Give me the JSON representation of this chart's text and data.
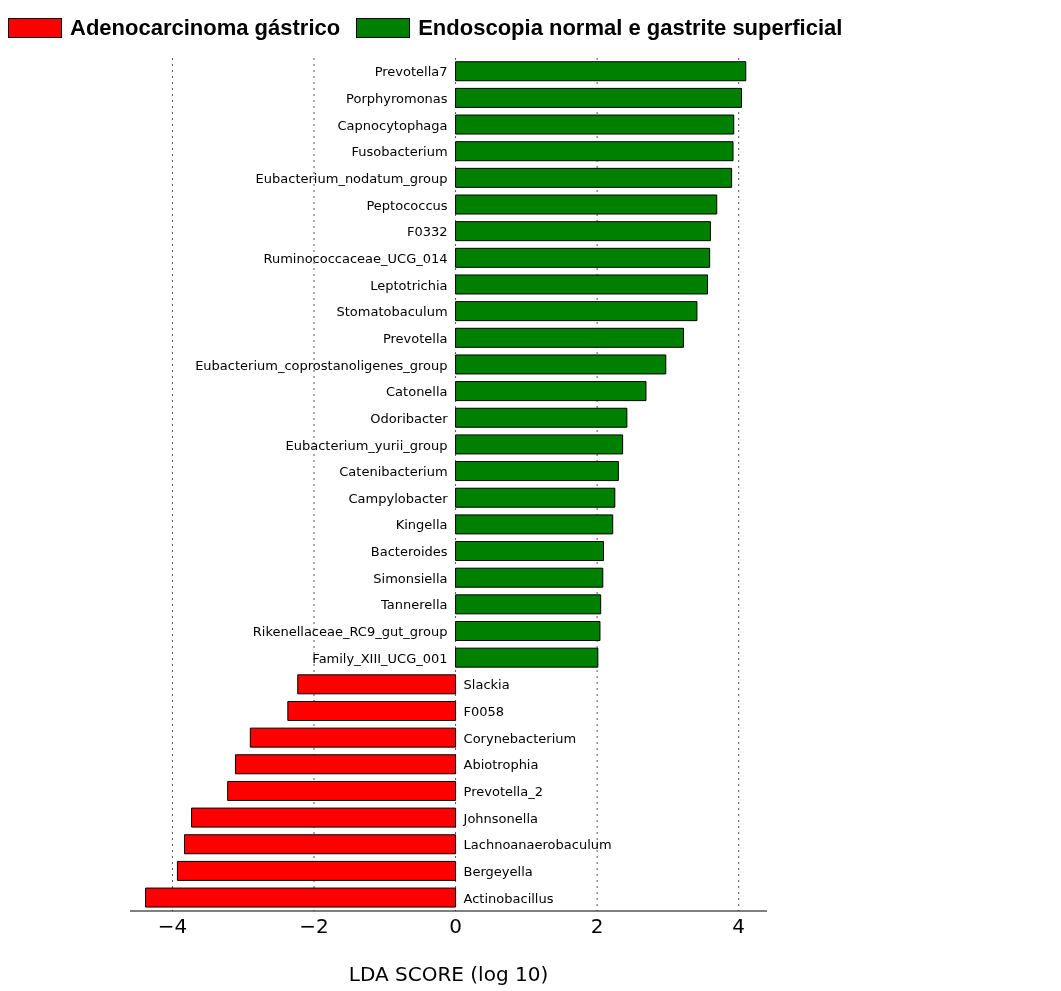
{
  "chart_data": {
    "type": "bar",
    "orientation": "horizontal",
    "xlabel": "LDA SCORE (log 10)",
    "categories": [
      "Prevotella7",
      "Porphyromonas",
      "Capnocytophaga",
      "Fusobacterium",
      "Eubacterium_nodatum_group",
      "Peptococcus",
      "F0332",
      "Ruminococcaceae_UCG_014",
      "Leptotrichia",
      "Stomatobaculum",
      "Prevotella",
      "Eubacterium_coprostanoligenes_group",
      "Catonella",
      "Odoribacter",
      "Eubacterium_yurii_group",
      "Catenibacterium",
      "Campylobacter",
      "Kingella",
      "Bacteroides",
      "Simonsiella",
      "Tannerella",
      "Rikenellaceae_RC9_gut_group",
      "Family_XIII_UCG_001",
      "Slackia",
      "F0058",
      "Corynebacterium",
      "Abiotrophia",
      "Prevotella_2",
      "Johnsonella",
      "Lachnoanaerobaculum",
      "Bergeyella",
      "Actinobacillus"
    ],
    "series": [
      {
        "name": "Adenocarcinoma gástrico",
        "color": "#ff0000",
        "values": [
          null,
          null,
          null,
          null,
          null,
          null,
          null,
          null,
          null,
          null,
          null,
          null,
          null,
          null,
          null,
          null,
          null,
          null,
          null,
          null,
          null,
          null,
          null,
          -2.23,
          -2.37,
          -2.9,
          -3.11,
          -3.22,
          -3.73,
          -3.83,
          -3.93,
          -4.38
        ]
      },
      {
        "name": "Endoscopia normal e gastrite superficial",
        "color": "#008000",
        "values": [
          4.1,
          4.04,
          3.93,
          3.92,
          3.9,
          3.69,
          3.6,
          3.59,
          3.56,
          3.41,
          3.22,
          2.97,
          2.69,
          2.42,
          2.36,
          2.3,
          2.25,
          2.22,
          2.09,
          2.08,
          2.05,
          2.04,
          2.01,
          null,
          null,
          null,
          null,
          null,
          null,
          null,
          null,
          null
        ]
      }
    ],
    "xlim": [
      -4.6,
      4.4
    ],
    "xticks": [
      -4,
      -2,
      0,
      2,
      4
    ],
    "grid": "x",
    "legend": "top"
  }
}
